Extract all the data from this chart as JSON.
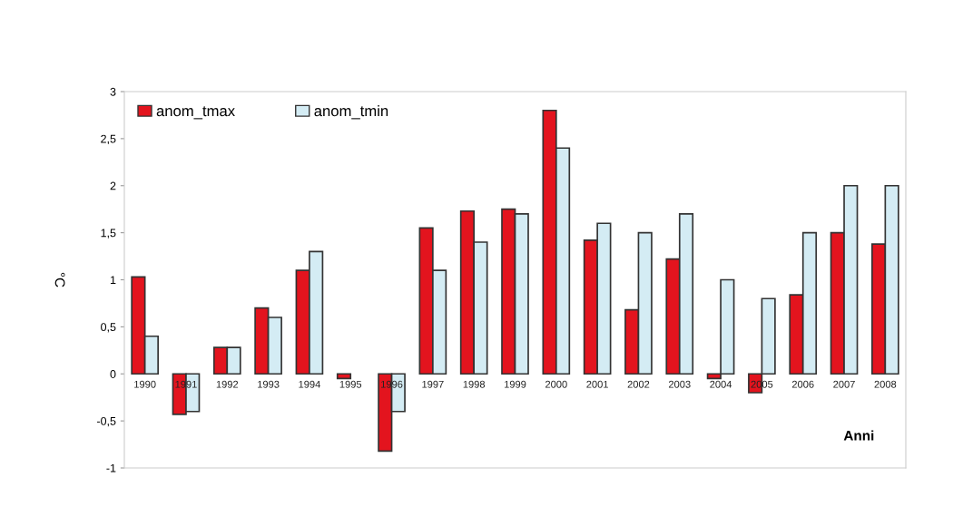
{
  "chart_data": {
    "type": "bar",
    "xlabel": "Anni",
    "ylabel": "°C",
    "categories": [
      "1990",
      "1991",
      "1992",
      "1993",
      "1994",
      "1995",
      "1996",
      "1997",
      "1998",
      "1999",
      "2000",
      "2001",
      "2002",
      "2003",
      "2004",
      "2005",
      "2006",
      "2007",
      "2008"
    ],
    "series": [
      {
        "name": "anom_tmax",
        "color": "#e3141e",
        "values": [
          1.03,
          -0.43,
          0.28,
          0.7,
          1.1,
          -0.05,
          -0.82,
          1.55,
          1.73,
          1.75,
          2.8,
          1.42,
          0.68,
          1.22,
          -0.05,
          -0.2,
          0.84,
          1.5,
          1.38
        ]
      },
      {
        "name": "anom_tmin",
        "color": "#d4ecf4",
        "values": [
          0.4,
          -0.4,
          0.28,
          0.6,
          1.3,
          null,
          -0.4,
          1.1,
          1.4,
          1.7,
          2.4,
          1.6,
          1.5,
          1.7,
          1.0,
          0.8,
          1.5,
          2.0,
          2.0
        ]
      }
    ],
    "ylim": [
      -1,
      3
    ],
    "yticks": [
      {
        "value": -1,
        "label": "-1"
      },
      {
        "value": -0.5,
        "label": "-0,5"
      },
      {
        "value": 0,
        "label": "0"
      },
      {
        "value": 0.5,
        "label": "0,5"
      },
      {
        "value": 1,
        "label": "1"
      },
      {
        "value": 1.5,
        "label": "1,5"
      },
      {
        "value": 2,
        "label": "2"
      },
      {
        "value": 2.5,
        "label": "2,5"
      },
      {
        "value": 3,
        "label": "3"
      }
    ],
    "grid": false,
    "legend": "top left"
  }
}
